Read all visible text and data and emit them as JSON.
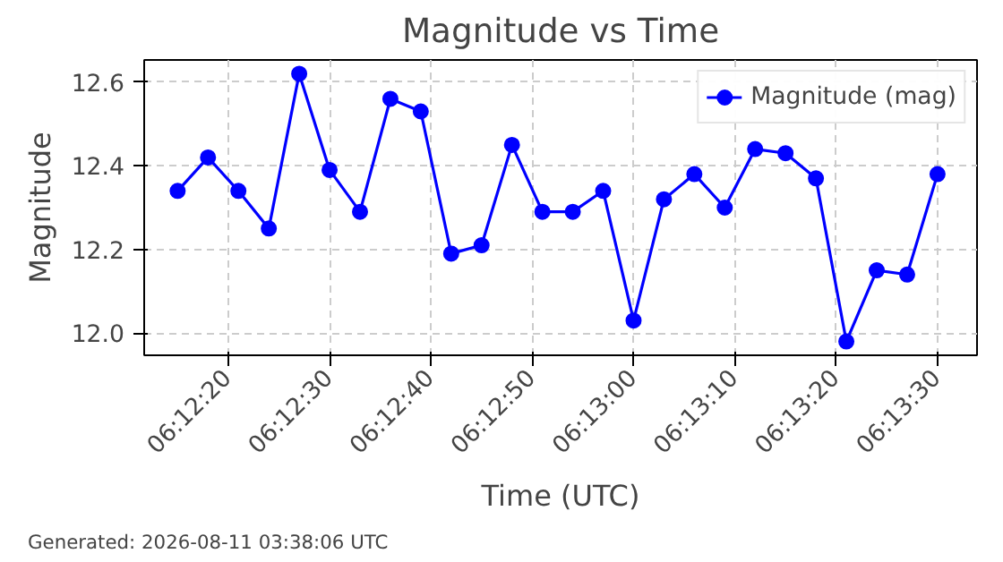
{
  "chart_data": {
    "type": "line",
    "title": "Magnitude vs Time",
    "xlabel": "Time (UTC)",
    "ylabel": "Magnitude",
    "x": [
      6.204167,
      6.205,
      6.205833,
      6.206667,
      6.2075,
      6.208333,
      6.209167,
      6.21,
      6.210833,
      6.211667,
      6.2125,
      6.213333,
      6.214167,
      6.215,
      6.215833,
      6.216667,
      6.2175,
      6.218333,
      6.219167,
      6.22,
      6.220833,
      6.221667,
      6.2225,
      6.223333,
      6.224167,
      6.225
    ],
    "series": [
      {
        "name": "Magnitude (mag)",
        "color": "#0000ff",
        "values": [
          12.34,
          12.42,
          12.34,
          12.25,
          12.62,
          12.39,
          12.29,
          12.56,
          12.53,
          12.19,
          12.21,
          12.45,
          12.29,
          12.29,
          12.34,
          12.03,
          12.32,
          12.38,
          12.3,
          12.44,
          12.43,
          12.37,
          11.98,
          12.15,
          12.14,
          12.38
        ]
      }
    ],
    "xlim": [
      6.20325,
      6.226083
    ],
    "ylim": [
      11.947,
      12.653
    ],
    "xticks": [
      {
        "value": 6.205556,
        "label": "06:12:20"
      },
      {
        "value": 6.208333,
        "label": "06:12:30"
      },
      {
        "value": 6.211111,
        "label": "06:12:40"
      },
      {
        "value": 6.213889,
        "label": "06:12:50"
      },
      {
        "value": 6.216667,
        "label": "06:13:00"
      },
      {
        "value": 6.219444,
        "label": "06:13:10"
      },
      {
        "value": 6.222222,
        "label": "06:13:20"
      },
      {
        "value": 6.225,
        "label": "06:13:30"
      }
    ],
    "yticks": [
      {
        "value": 12.0,
        "label": "12.0"
      },
      {
        "value": 12.2,
        "label": "12.2"
      },
      {
        "value": 12.4,
        "label": "12.4"
      },
      {
        "value": 12.6,
        "label": "12.6"
      }
    ],
    "grid": true,
    "legend": "top right",
    "marker": "circle",
    "line_style": "solid",
    "annotations": [
      "Generated: 2026-08-11 03:38:06 UTC"
    ]
  }
}
